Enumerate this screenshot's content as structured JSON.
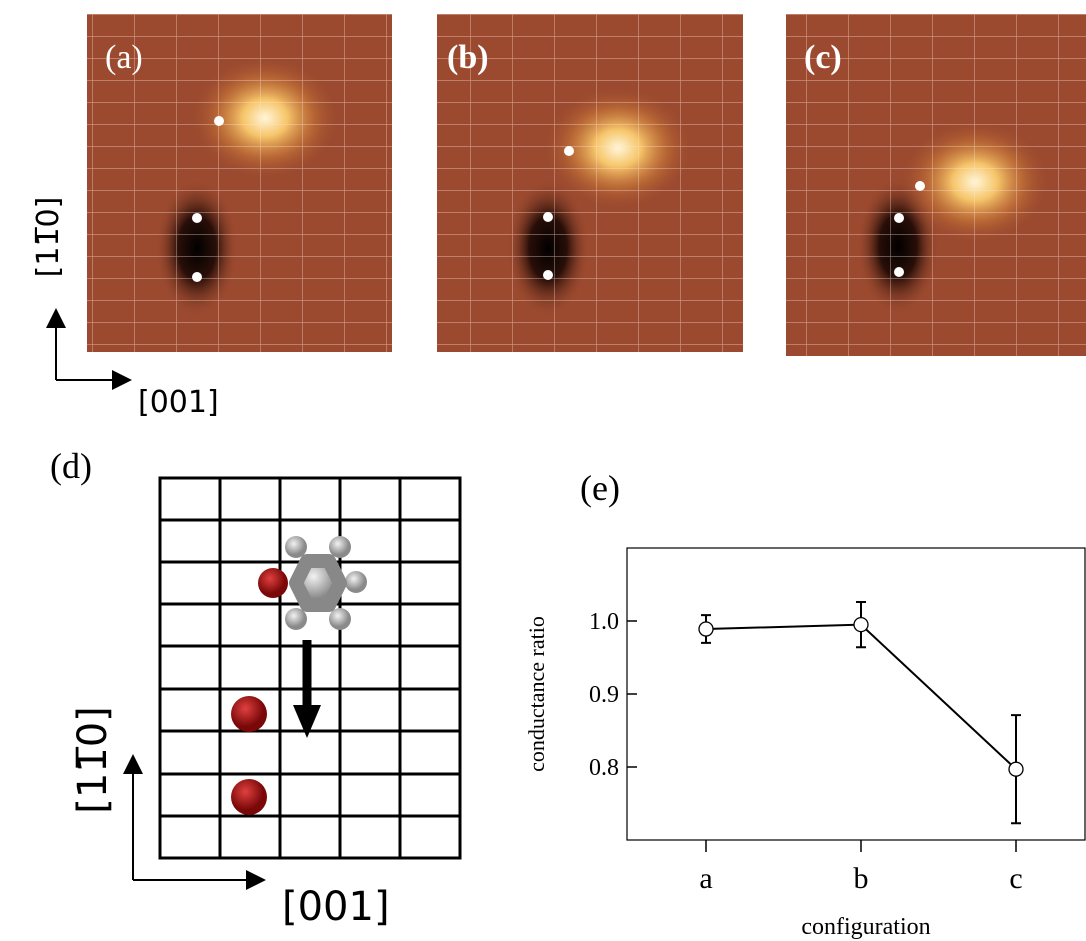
{
  "figure": {
    "panels": [
      "(a)",
      "(b)",
      "(c)",
      "(d)",
      "(e)"
    ],
    "direction_labels": {
      "vertical": "[11̅0]",
      "horizontal": "[001]"
    }
  },
  "chart_data": {
    "type": "line",
    "categories": [
      "a",
      "b",
      "c"
    ],
    "series": [
      {
        "color": "#000000",
        "values": [
          0.989,
          0.995,
          0.797
        ],
        "errors": [
          0.019,
          0.031,
          0.074
        ]
      }
    ],
    "ylim": [
      0.7,
      1.1
    ],
    "yticks": [
      {
        "value": 1.0,
        "label": "1.0"
      },
      0.9,
      0.8
    ],
    "ylabel": "conductance ratio",
    "xlabel": "configuration"
  }
}
